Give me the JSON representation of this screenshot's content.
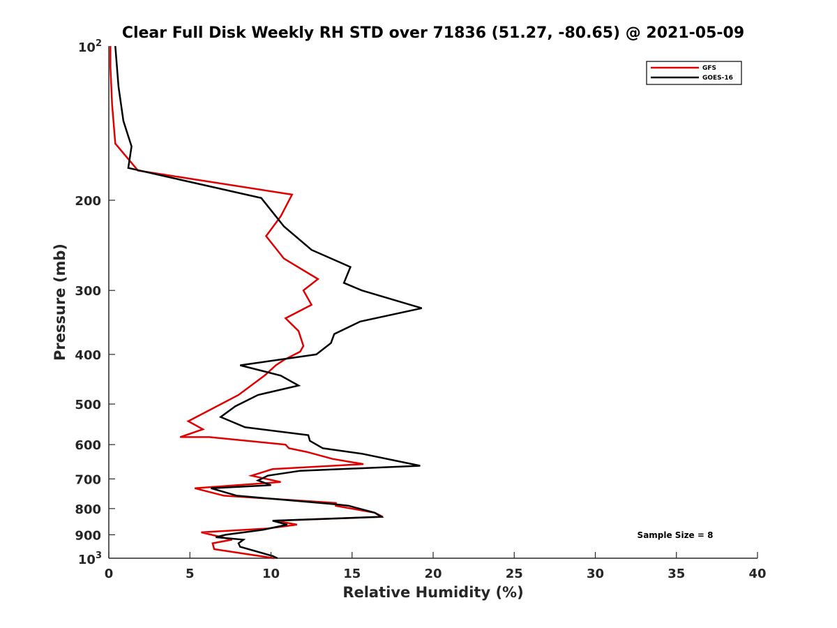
{
  "chart_data": {
    "type": "line",
    "title": "Clear Full Disk Weekly RH STD over 71836 (51.27, -80.65) @ 2021-05-09",
    "xlabel": "Relative Humidity (%)",
    "ylabel": "Pressure (mb)",
    "xlim": [
      0,
      40
    ],
    "ylim": [
      100,
      1000
    ],
    "y_scale": "log",
    "y_reversed": true,
    "x_ticks": [
      0,
      5,
      10,
      15,
      20,
      25,
      30,
      35,
      40
    ],
    "x_tick_labels": [
      "0",
      "5",
      "10",
      "15",
      "20",
      "25",
      "30",
      "35",
      "40"
    ],
    "y_ticks": [
      200,
      300,
      400,
      500,
      600,
      700,
      800,
      900
    ],
    "y_tick_labels": [
      "200",
      "300",
      "400",
      "500",
      "600",
      "700",
      "800",
      "900"
    ],
    "y_decade_labels": [
      {
        "value": 100,
        "base": "10",
        "exp": "2"
      },
      {
        "value": 1000,
        "base": "10",
        "exp": "3"
      }
    ],
    "grid": false,
    "legend_position": "top-right",
    "annotation": "Sample Size = 8",
    "series": [
      {
        "name": "GFS",
        "color": "#e00000",
        "x": [
          0.1,
          0.1,
          0.2,
          0.4,
          1.8,
          11.3,
          10.6,
          9.7,
          10.8,
          12.9,
          12.0,
          12.5,
          10.9,
          11.7,
          12.0,
          11.8,
          10.8,
          10.3,
          9.6,
          8.0,
          5.9,
          4.9,
          5.8,
          4.4,
          6.2,
          10.9,
          11.1,
          12.2,
          13.8,
          15.7,
          10.1,
          8.8,
          10.6,
          5.3,
          7.1,
          14.0,
          14.0,
          16.4,
          16.9,
          10.3,
          11.6,
          9.8,
          5.7,
          7.6,
          6.4,
          6.5,
          10.2
        ],
        "y": [
          100,
          110,
          130,
          155,
          175,
          195,
          215,
          235,
          260,
          285,
          300,
          320,
          340,
          360,
          385,
          395,
          410,
          420,
          440,
          480,
          520,
          540,
          560,
          580,
          580,
          600,
          610,
          620,
          640,
          655,
          670,
          690,
          710,
          730,
          755,
          780,
          790,
          815,
          830,
          845,
          860,
          875,
          890,
          920,
          935,
          960,
          1000
        ],
        "width": 2.5
      },
      {
        "name": "GOES-16",
        "color": "#000000",
        "x": [
          0.4,
          0.6,
          0.9,
          1.4,
          1.2,
          9.4,
          10.8,
          12.5,
          14.9,
          14.5,
          15.6,
          19.3,
          15.5,
          13.9,
          13.7,
          12.8,
          8.1,
          10.6,
          11.7,
          9.2,
          7.8,
          6.9,
          8.4,
          12.3,
          12.4,
          13.2,
          15.6,
          19.2,
          11.8,
          9.8,
          9.2,
          10.0,
          6.3,
          7.9,
          14.0,
          14.8,
          16.4,
          16.8,
          10.1,
          11.0,
          9.5,
          7.2,
          6.6,
          8.3,
          8.0,
          8.1,
          10.1,
          10.4
        ],
        "y": [
          100,
          120,
          140,
          157,
          173,
          198,
          225,
          250,
          270,
          290,
          300,
          325,
          345,
          365,
          380,
          400,
          420,
          440,
          460,
          480,
          505,
          530,
          555,
          575,
          590,
          610,
          625,
          660,
          675,
          690,
          705,
          720,
          730,
          755,
          785,
          790,
          815,
          830,
          845,
          860,
          880,
          900,
          910,
          920,
          935,
          950,
          990,
          1000
        ],
        "width": 2.5
      }
    ]
  }
}
